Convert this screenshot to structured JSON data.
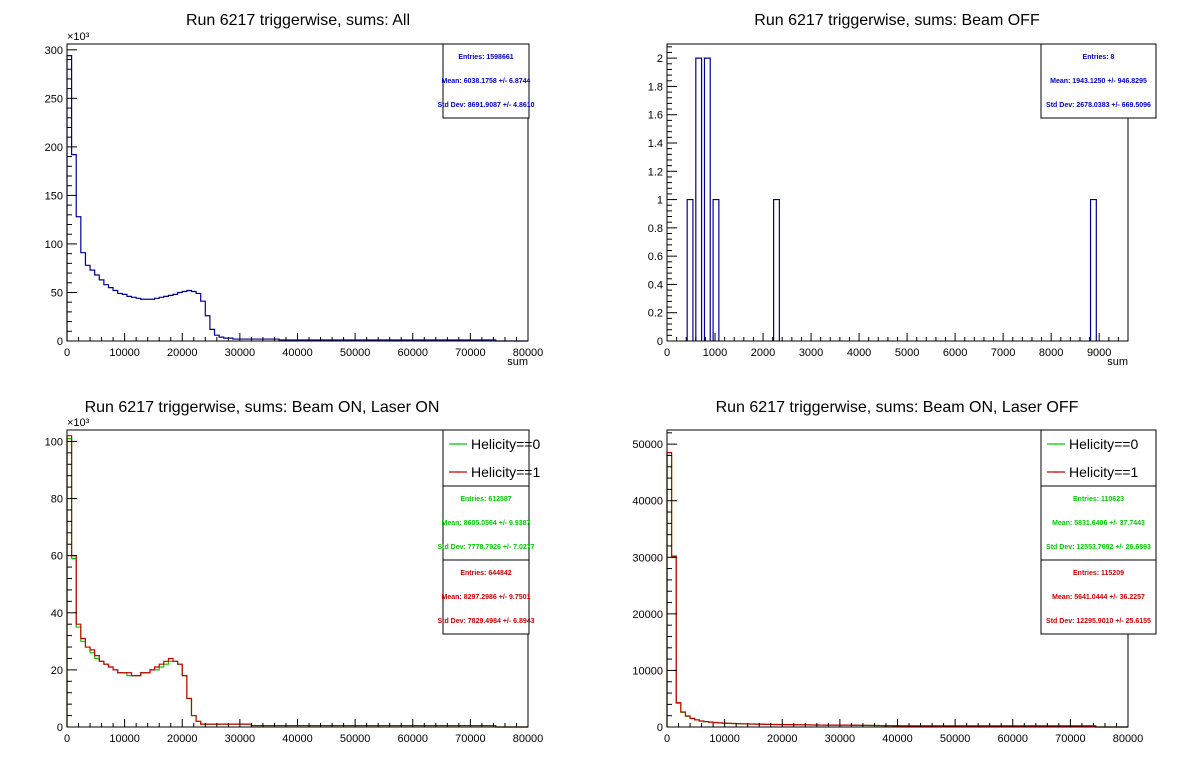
{
  "chart_data": [
    {
      "type": "histogram",
      "title": "Run 6217 triggerwise, sums: All",
      "xlabel": "sum",
      "ylabel": "",
      "y_multiplier": "×10³",
      "xlim": [
        0,
        80000
      ],
      "ylim": [
        0,
        306
      ],
      "x_ticks": [
        0,
        10000,
        20000,
        30000,
        40000,
        50000,
        60000,
        70000,
        80000
      ],
      "x_tick_labels": [
        "0",
        "10000",
        "20000",
        "30000",
        "40000",
        "50000",
        "60000",
        "70000",
        "80000"
      ],
      "y_ticks": [
        0,
        50,
        100,
        150,
        200,
        250,
        300
      ],
      "y_tick_labels": [
        "0",
        "50",
        "100",
        "150",
        "200",
        "250",
        "300"
      ],
      "bin_width": 800,
      "series": [
        {
          "color": "#000099",
          "values": [
            294,
            192,
            128,
            91,
            78,
            73,
            68,
            63,
            58,
            55,
            52,
            49,
            48,
            46,
            45,
            44,
            43,
            43,
            43,
            44,
            45,
            46,
            47,
            48,
            50,
            51,
            52,
            51,
            49,
            41,
            26,
            12,
            6,
            4,
            3,
            3,
            2,
            2,
            2,
            2,
            2,
            2,
            2,
            2,
            2,
            2,
            1,
            1,
            1,
            1,
            1,
            1,
            1,
            1,
            1,
            1,
            1,
            1,
            1,
            1,
            1,
            1,
            1,
            1,
            1,
            1,
            1,
            1,
            1,
            1,
            1,
            1,
            1,
            1,
            1,
            1,
            1,
            1,
            1,
            1,
            1,
            1,
            1,
            1,
            1,
            1,
            1,
            1,
            1,
            1,
            1,
            1,
            1,
            0,
            0,
            0,
            0,
            0,
            0,
            0
          ]
        }
      ],
      "stats": [
        {
          "color": "#0000cc",
          "lines": [
            "Entries: 1598661",
            "Mean: 6038.1758 +/- 6.8744",
            "Std Dev: 8691.9087 +/- 4.8610"
          ]
        }
      ],
      "legend": []
    },
    {
      "type": "histogram",
      "title": "Run 6217 triggerwise, sums: Beam OFF",
      "xlabel": "sum",
      "ylabel": "",
      "y_multiplier": "",
      "xlim": [
        0,
        9600
      ],
      "ylim": [
        0,
        2.1
      ],
      "x_ticks": [
        0,
        1000,
        2000,
        3000,
        4000,
        5000,
        6000,
        7000,
        8000,
        9000
      ],
      "x_tick_labels": [
        "0",
        "1000",
        "2000",
        "3000",
        "4000",
        "5000",
        "6000",
        "7000",
        "8000",
        "9000"
      ],
      "y_ticks": [
        0,
        0.2,
        0.4,
        0.6,
        0.8,
        1,
        1.2,
        1.4,
        1.6,
        1.8,
        2
      ],
      "y_tick_labels": [
        "0",
        "0.2",
        "0.4",
        "0.6",
        "0.8",
        "1",
        "1.2",
        "1.4",
        "1.6",
        "1.8",
        "2"
      ],
      "bin_width": 120,
      "series": [
        {
          "color": "#000099",
          "bins": [
            {
              "x": 420,
              "value": 1
            },
            {
              "x": 600,
              "value": 2
            },
            {
              "x": 780,
              "value": 2
            },
            {
              "x": 960,
              "value": 1
            },
            {
              "x": 2220,
              "value": 1
            },
            {
              "x": 8820,
              "value": 1
            }
          ]
        }
      ],
      "stats": [
        {
          "color": "#0000cc",
          "lines": [
            "Entries: 8",
            "Mean: 1943.1250 +/- 946.8295",
            "Std Dev: 2678.0383 +/- 669.5096"
          ]
        }
      ],
      "legend": []
    },
    {
      "type": "histogram",
      "title": "Run 6217 triggerwise, sums: Beam ON, Laser ON",
      "xlabel": "",
      "ylabel": "",
      "y_multiplier": "×10³",
      "xlim": [
        0,
        80000
      ],
      "ylim": [
        0,
        104
      ],
      "x_ticks": [
        0,
        10000,
        20000,
        30000,
        40000,
        50000,
        60000,
        70000,
        80000
      ],
      "x_tick_labels": [
        "0",
        "10000",
        "20000",
        "30000",
        "40000",
        "50000",
        "60000",
        "70000",
        "80000"
      ],
      "y_ticks": [
        0,
        20,
        40,
        60,
        80,
        100
      ],
      "y_tick_labels": [
        "0",
        "20",
        "40",
        "60",
        "80",
        "100"
      ],
      "bin_width": 800,
      "series": [
        {
          "name": "Helicity==0",
          "color": "#00cc00",
          "values": [
            101,
            59,
            35,
            30,
            28,
            26,
            24,
            23,
            22,
            21,
            20,
            19,
            19,
            18,
            18,
            18,
            19,
            19,
            20,
            20,
            21,
            22,
            23,
            23,
            22,
            18,
            10,
            4,
            2,
            1,
            1,
            1,
            1,
            1,
            1,
            1,
            1,
            1,
            1,
            1,
            0.5,
            0.5,
            0.5,
            0.5,
            0.5,
            0.5,
            0.5,
            0.5,
            0.5,
            0.5,
            0.5,
            0.5,
            0.5,
            0.5,
            0.5,
            0.5,
            0.5,
            0.5,
            0.5,
            0.5,
            0.5,
            0.5,
            0.5,
            0.5,
            0.5,
            0.5,
            0.5,
            0.5,
            0.5,
            0.5,
            0.5,
            0.5,
            0.5,
            0.5,
            0.5,
            0.5,
            0.5,
            0.5,
            0.5,
            0.5,
            0.5,
            0.5,
            0.5,
            0.5,
            0.5,
            0.5,
            0.5,
            0.5,
            0.5,
            0.5,
            0.5,
            0.5,
            0.5,
            0,
            0,
            0,
            0,
            0,
            0,
            0
          ]
        },
        {
          "name": "Helicity==1",
          "color": "#cc0000",
          "values": [
            102,
            60,
            36,
            31,
            28,
            27,
            25,
            23,
            22,
            21,
            20,
            19,
            19,
            19,
            18,
            18,
            19,
            19,
            20,
            21,
            22,
            23,
            24,
            23,
            22,
            18,
            10,
            4,
            2,
            1,
            1,
            1,
            1,
            1,
            1,
            1,
            1,
            1,
            1,
            1,
            0.5,
            0.5,
            0.5,
            0.5,
            0.5,
            0.5,
            0.5,
            0.5,
            0.5,
            0.5,
            0.5,
            0.5,
            0.5,
            0.5,
            0.5,
            0.5,
            0.5,
            0.5,
            0.5,
            0.5,
            0.5,
            0.5,
            0.5,
            0.5,
            0.5,
            0.5,
            0.5,
            0.5,
            0.5,
            0.5,
            0.5,
            0.5,
            0.5,
            0.5,
            0.5,
            0.5,
            0.5,
            0.5,
            0.5,
            0.5,
            0.5,
            0.5,
            0.5,
            0.5,
            0.5,
            0.5,
            0.5,
            0.5,
            0.5,
            0.5,
            0.5,
            0.5,
            0.5,
            0,
            0,
            0,
            0,
            0,
            0,
            0
          ]
        }
      ],
      "stats": [
        {
          "color": "#00cc00",
          "lines": [
            "Entries: 612587",
            "Mean: 8605.0564 +/- 9.9387",
            "Std Dev: 7778.7926 +/- 7.0277"
          ]
        },
        {
          "color": "#cc0000",
          "lines": [
            "Entries: 644842",
            "Mean: 8297.2986 +/- 9.7501",
            "Std Dev: 7829.4984 +/- 6.8943"
          ]
        }
      ],
      "legend": [
        "Helicity==0",
        "Helicity==1"
      ]
    },
    {
      "type": "histogram",
      "title": "Run 6217 triggerwise, sums: Beam ON, Laser OFF",
      "xlabel": "",
      "ylabel": "",
      "y_multiplier": "",
      "xlim": [
        0,
        80000
      ],
      "ylim": [
        0,
        52500
      ],
      "x_ticks": [
        0,
        10000,
        20000,
        30000,
        40000,
        50000,
        60000,
        70000,
        80000
      ],
      "x_tick_labels": [
        "0",
        "10000",
        "20000",
        "30000",
        "40000",
        "50000",
        "60000",
        "70000",
        "80000"
      ],
      "y_ticks": [
        0,
        10000,
        20000,
        30000,
        40000,
        50000
      ],
      "y_tick_labels": [
        "0",
        "10000",
        "20000",
        "30000",
        "40000",
        "50000"
      ],
      "bin_width": 800,
      "series": [
        {
          "name": "Helicity==0",
          "color": "#00cc00",
          "values": [
            48000,
            30000,
            4200,
            2600,
            1900,
            1500,
            1250,
            1050,
            950,
            850,
            780,
            720,
            680,
            640,
            610,
            580,
            560,
            540,
            520,
            500,
            480,
            460,
            450,
            440,
            430,
            420,
            410,
            400,
            390,
            380,
            370,
            360,
            350,
            340,
            330,
            320,
            320,
            320,
            320,
            320,
            310,
            300,
            290,
            280,
            270,
            260,
            250,
            240,
            230,
            220,
            210,
            200,
            200,
            200,
            200,
            200,
            200,
            200,
            200,
            200,
            200,
            200,
            200,
            200,
            200,
            200,
            200,
            200,
            200,
            200,
            200,
            200,
            200,
            200,
            200,
            200,
            200,
            200,
            200,
            200,
            200,
            200,
            200,
            200,
            200,
            200,
            200,
            200,
            200,
            200,
            200,
            200,
            200,
            0,
            0,
            0,
            0,
            0,
            0,
            0
          ]
        },
        {
          "name": "Helicity==1",
          "color": "#cc0000",
          "values": [
            48500,
            30200,
            4300,
            2650,
            1950,
            1520,
            1270,
            1060,
            960,
            860,
            790,
            730,
            690,
            650,
            615,
            585,
            565,
            545,
            525,
            505,
            485,
            465,
            455,
            445,
            435,
            425,
            415,
            405,
            395,
            385,
            375,
            365,
            355,
            345,
            335,
            325,
            325,
            325,
            325,
            325,
            315,
            305,
            295,
            285,
            275,
            265,
            255,
            245,
            235,
            225,
            215,
            205,
            205,
            205,
            205,
            205,
            205,
            205,
            205,
            205,
            205,
            205,
            205,
            205,
            205,
            205,
            205,
            205,
            205,
            205,
            205,
            205,
            205,
            205,
            205,
            205,
            205,
            205,
            205,
            205,
            205,
            205,
            205,
            205,
            205,
            205,
            205,
            205,
            205,
            205,
            205,
            205,
            205,
            0,
            0,
            0,
            0,
            0,
            0,
            0
          ]
        }
      ],
      "stats": [
        {
          "color": "#00cc00",
          "lines": [
            "Entries: 110623",
            "Mean: 5831.6406 +/- 37.7443",
            "Std Dev: 12553.7692 +/- 26.6893"
          ]
        },
        {
          "color": "#cc0000",
          "lines": [
            "Entries: 115209",
            "Mean: 5641.0444 +/- 36.2257",
            "Std Dev: 12295.9010 +/- 25.6155"
          ]
        }
      ],
      "legend": [
        "Helicity==0",
        "Helicity==1"
      ]
    }
  ]
}
